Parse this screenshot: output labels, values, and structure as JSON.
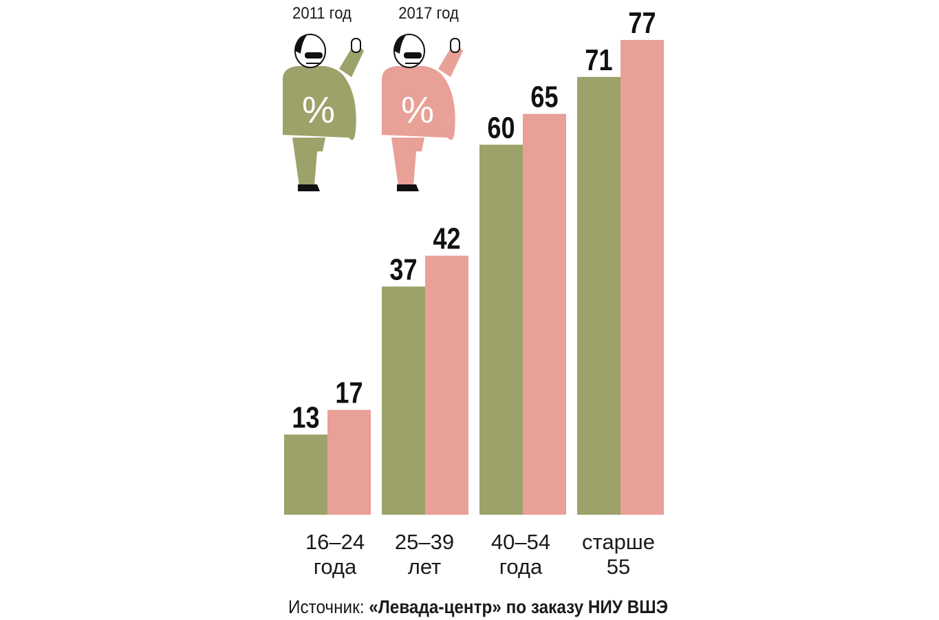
{
  "chart_data": {
    "type": "bar",
    "categories": [
      "16–24\nгода",
      "25–39\nлет",
      "40–54\nгода",
      "старше\n55"
    ],
    "series": [
      {
        "name": "2011 год",
        "color": "#9da26a",
        "values": [
          13,
          37,
          60,
          71
        ]
      },
      {
        "name": "2017 год",
        "color": "#e9a097",
        "values": [
          17,
          42,
          65,
          77
        ]
      }
    ],
    "value_unit": "%",
    "ylim": [
      0,
      77
    ],
    "grid": false,
    "legend_placement": "top-left",
    "legend_figure_symbol": "%"
  },
  "source": {
    "prefix": "Источник: ",
    "text": "«Левада-центр» по заказу НИУ ВШЭ"
  },
  "colors": {
    "figure_dark": "#111111",
    "figure_light": "#ffffff"
  }
}
